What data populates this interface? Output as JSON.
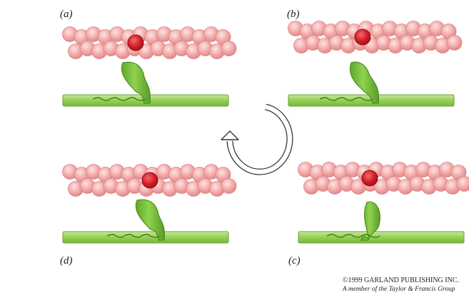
{
  "panels": {
    "a": {
      "label": "(a)"
    },
    "b": {
      "label": "(b)"
    },
    "c": {
      "label": "(c)"
    },
    "d": {
      "label": "(d)"
    }
  },
  "copyright": {
    "line1": "©1999 GARLAND PUBLISHING INC.",
    "line2": "A member of the Taylor & Francis Group"
  },
  "colors": {
    "actin_bead": "#f4a7a7",
    "actin_bead_edge": "#d98585",
    "bound_bead": "#d41f2b",
    "myosin": "#7cc23f",
    "myosin_edge": "#4c8e1e",
    "thick_filament": "#9fd35e",
    "arrow": "#333333"
  }
}
